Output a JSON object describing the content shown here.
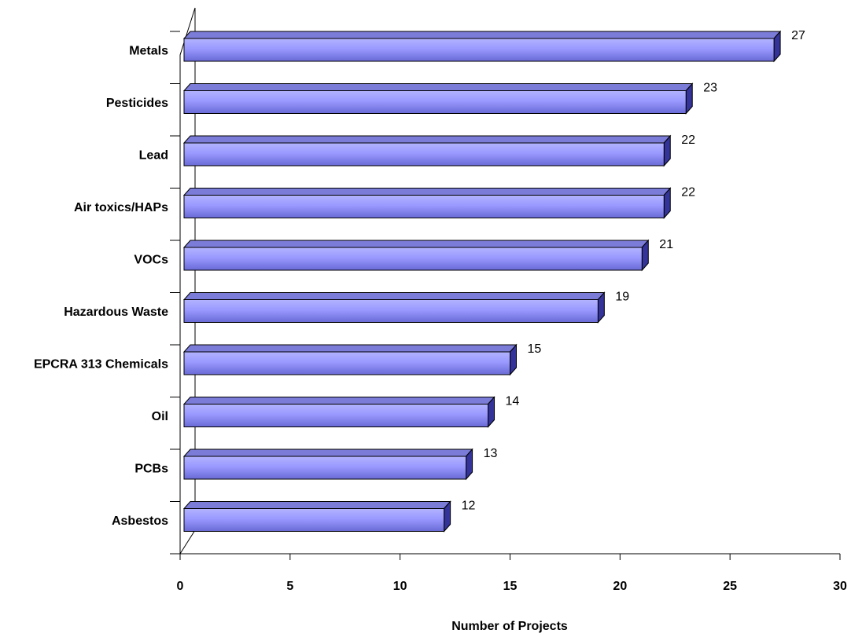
{
  "chart_data": {
    "type": "bar",
    "orientation": "horizontal",
    "style": "3d",
    "categories": [
      "Metals",
      "Pesticides",
      "Lead",
      "Air toxics/HAPs",
      "VOCs",
      "Hazardous Waste",
      "EPCRA 313 Chemicals",
      "Oil",
      "PCBs",
      "Asbestos"
    ],
    "values": [
      27,
      23,
      22,
      22,
      21,
      19,
      15,
      14,
      13,
      12
    ],
    "xlabel": "Number of Projects",
    "ylabel": "",
    "title": "",
    "xlim": [
      0,
      30
    ],
    "xticks": [
      "0",
      "5",
      "10",
      "15",
      "20",
      "25",
      "30"
    ],
    "grid": false,
    "legend": "none",
    "data_labels": true,
    "colors": {
      "bar_front": "#9999ff",
      "bar_top": "#7b7bd8",
      "bar_side": "#333399"
    }
  }
}
